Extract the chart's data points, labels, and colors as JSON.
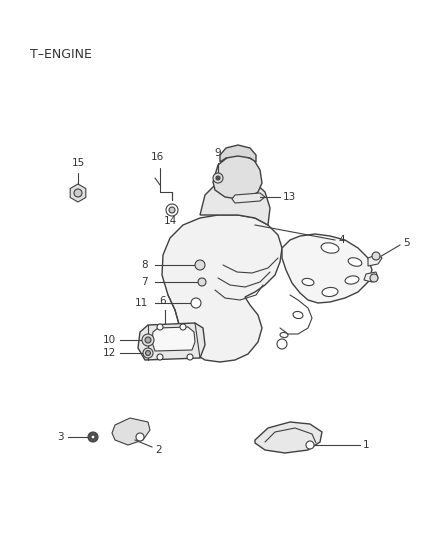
{
  "title": "T–ENGINE",
  "background_color": "#ffffff",
  "line_color": "#404040",
  "label_color": "#333333",
  "fig_width": 4.38,
  "fig_height": 5.33,
  "dpi": 100
}
